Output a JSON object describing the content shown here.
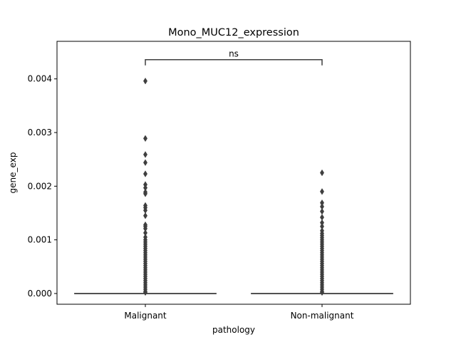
{
  "chart_data": {
    "type": "box",
    "title": "Mono_MUC12_expression",
    "xlabel": "pathology",
    "ylabel": "gene_exp",
    "categories": [
      "Malignant",
      "Non-malignant"
    ],
    "ylim": [
      -0.0002,
      0.0047
    ],
    "yticks": [
      0.0,
      0.001,
      0.002,
      0.003,
      0.004
    ],
    "ytick_labels": [
      "0.000",
      "0.001",
      "0.002",
      "0.003",
      "0.004"
    ],
    "boxes": [
      {
        "category": "Malignant",
        "q1": 0.0,
        "median": 0.0,
        "q3": 0.0,
        "whisker_low": 0.0,
        "whisker_high": 0.0
      },
      {
        "category": "Non-malignant",
        "q1": 0.0,
        "median": 0.0,
        "q3": 0.0,
        "whisker_low": 0.0,
        "whisker_high": 0.0
      }
    ],
    "outliers": [
      {
        "category": "Malignant",
        "values": [
          0.00396,
          0.00289,
          0.00259,
          0.00244,
          0.00223,
          0.00203,
          0.00197,
          0.00189,
          0.00186,
          0.00164,
          0.0016,
          0.00155,
          0.00145,
          0.00128,
          0.00125,
          0.00121,
          0.00113,
          0.00105,
          0.001,
          0.00096,
          0.00092,
          0.00088,
          0.00084,
          0.0008,
          0.00076,
          0.00072,
          0.00068,
          0.00064,
          0.0006,
          0.00056,
          0.00052,
          0.00048,
          0.00044,
          0.0004,
          0.00036,
          0.00032,
          0.00028,
          0.00024,
          0.0002,
          0.00016,
          0.00012,
          8e-05,
          4e-05,
          2e-05
        ]
      },
      {
        "category": "Non-malignant",
        "values": [
          0.00225,
          0.0019,
          0.00169,
          0.00162,
          0.00153,
          0.00142,
          0.00132,
          0.00125,
          0.00117,
          0.00112,
          0.00108,
          0.00104,
          0.001,
          0.00096,
          0.00092,
          0.00088,
          0.00084,
          0.0008,
          0.00076,
          0.00072,
          0.00068,
          0.00064,
          0.0006,
          0.00056,
          0.00052,
          0.00048,
          0.00044,
          0.0004,
          0.00036,
          0.00032,
          0.00028,
          0.00024,
          0.0002,
          0.00016,
          0.00012,
          8e-05,
          4e-05,
          2e-05
        ]
      }
    ],
    "annotation": {
      "text": "ns",
      "between": [
        "Malignant",
        "Non-malignant"
      ]
    },
    "grid": false,
    "colors": {
      "box_line": "#3f3f3f",
      "marker": "#3f3f3f",
      "axis": "#000000"
    }
  }
}
